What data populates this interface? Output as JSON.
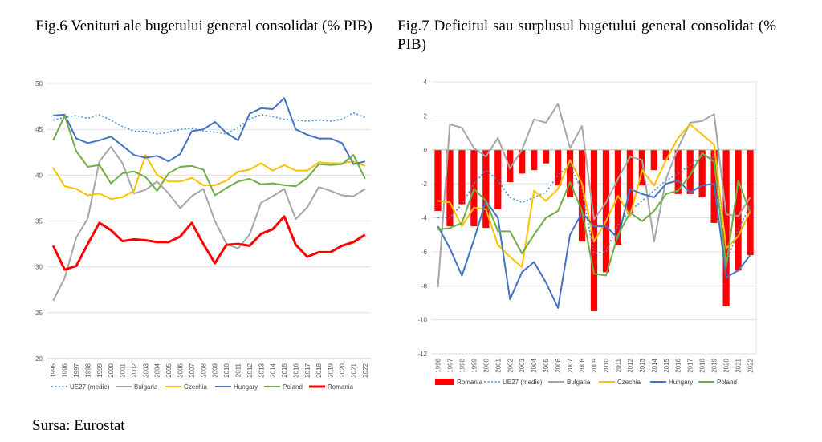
{
  "figures": {
    "fig6_title": "Fig.6 Venituri ale bugetului general consolidat (% PIB)",
    "fig7_title": "Fig.7 Deficitul sau surplusul bugetului general consolidat (% PIB)",
    "source": "Sursa: Eurostat"
  },
  "colors": {
    "UE27": "#4a8fd4",
    "Bulgaria": "#a6a6a6",
    "Czechia": "#ffc000",
    "Hungary": "#4472c4",
    "Poland": "#70ad47",
    "Romania": "#ff0000",
    "Romania_bar": "#ff0000",
    "grid": "#d9d9d9",
    "axis": "#bfbfbf"
  },
  "chart_data": [
    {
      "type": "line",
      "title": "Fig.6 Venituri ale bugetului general consolidat (% PIB)",
      "x": [
        "1995",
        "1996",
        "1997",
        "1998",
        "1999",
        "2000",
        "2001",
        "2002",
        "2003",
        "2004",
        "2005",
        "2006",
        "2007",
        "2008",
        "2009",
        "2010",
        "2011",
        "2012",
        "2013",
        "2014",
        "2015",
        "2016",
        "2017",
        "2018",
        "2019",
        "2020",
        "2021",
        "2022"
      ],
      "ylim": [
        20,
        50
      ],
      "yticks": [
        20,
        25,
        30,
        35,
        40,
        45,
        50
      ],
      "grid": true,
      "legend_position": "bottom",
      "series": [
        {
          "name": "UE27 (medie)",
          "style": "dotted",
          "values": [
            46.0,
            46.3,
            46.5,
            46.2,
            46.6,
            46.0,
            45.3,
            44.8,
            44.8,
            44.5,
            44.7,
            45.0,
            45.1,
            44.8,
            44.7,
            44.5,
            45.2,
            46.1,
            46.6,
            46.4,
            46.1,
            46.0,
            45.9,
            46.0,
            45.9,
            46.1,
            46.8,
            46.3
          ]
        },
        {
          "name": "Bulgaria",
          "style": "solid",
          "values": [
            26.3,
            28.8,
            33.2,
            35.3,
            41.5,
            43.1,
            41.3,
            38.0,
            38.4,
            39.3,
            38.0,
            36.4,
            37.7,
            38.5,
            35.0,
            32.5,
            32.0,
            33.5,
            37.0,
            37.7,
            38.5,
            35.2,
            36.5,
            38.7,
            38.3,
            37.8,
            37.7,
            38.5
          ]
        },
        {
          "name": "Czechia",
          "style": "solid",
          "values": [
            40.8,
            38.8,
            38.5,
            37.8,
            38.0,
            37.4,
            37.6,
            38.3,
            42.2,
            40.0,
            39.3,
            39.3,
            39.7,
            38.9,
            38.9,
            39.4,
            40.4,
            40.6,
            41.3,
            40.5,
            41.1,
            40.5,
            40.5,
            41.4,
            41.3,
            41.3,
            41.5,
            41.0
          ]
        },
        {
          "name": "Hungary",
          "style": "solid",
          "values": [
            46.5,
            46.6,
            44.0,
            43.5,
            43.8,
            44.2,
            43.2,
            42.2,
            41.9,
            42.1,
            41.5,
            42.3,
            44.8,
            45.0,
            45.8,
            44.6,
            43.8,
            46.7,
            47.3,
            47.2,
            48.4,
            45.0,
            44.4,
            44.0,
            44.0,
            43.5,
            41.2,
            41.5
          ]
        },
        {
          "name": "Poland",
          "style": "solid",
          "values": [
            43.8,
            46.5,
            42.6,
            40.9,
            41.1,
            39.1,
            40.2,
            40.4,
            39.8,
            38.3,
            40.2,
            40.9,
            41.0,
            40.6,
            37.8,
            38.6,
            39.3,
            39.6,
            39.0,
            39.1,
            38.9,
            38.8,
            39.7,
            41.2,
            41.1,
            41.2,
            42.2,
            39.6
          ]
        },
        {
          "name": "Romania",
          "style": "solid",
          "values": [
            32.3,
            29.7,
            30.1,
            32.5,
            34.8,
            34.0,
            32.8,
            33.0,
            32.9,
            32.7,
            32.7,
            33.3,
            34.8,
            32.5,
            30.4,
            32.4,
            32.5,
            32.3,
            33.6,
            34.1,
            35.5,
            32.4,
            31.1,
            31.6,
            31.6,
            32.3,
            32.7,
            33.5
          ]
        }
      ]
    },
    {
      "type": "bar",
      "title": "Fig.7 Deficitul sau surplusul bugetului general consolidat (% PIB)",
      "x": [
        "1996",
        "1997",
        "1998",
        "1999",
        "2000",
        "2001",
        "2002",
        "2003",
        "2004",
        "2005",
        "2006",
        "2007",
        "2008",
        "2009",
        "2010",
        "2011",
        "2012",
        "2013",
        "2014",
        "2015",
        "2016",
        "2017",
        "2018",
        "2019",
        "2020",
        "2021",
        "2022"
      ],
      "ylim": [
        -12,
        4
      ],
      "yticks": [
        -12,
        -10,
        -8,
        -6,
        -4,
        -2,
        0,
        2,
        4
      ],
      "grid": true,
      "legend_position": "bottom",
      "bar_series": {
        "name": "Romania",
        "values": [
          -3.6,
          -4.5,
          -3.2,
          -4.5,
          -4.6,
          -3.5,
          -1.9,
          -1.4,
          -1.2,
          -0.8,
          -2.1,
          -2.8,
          -5.4,
          -9.5,
          -7.2,
          -5.6,
          -3.7,
          -2.1,
          -1.2,
          -0.6,
          -2.6,
          -2.6,
          -2.8,
          -4.3,
          -9.2,
          -7.1,
          -6.2
        ]
      },
      "series": [
        {
          "name": "UE27 (medie)",
          "style": "dotted",
          "values": [
            -4.0,
            -4.0,
            -3.2,
            -2.0,
            -1.2,
            -1.8,
            -2.8,
            -3.1,
            -2.8,
            -2.5,
            -1.5,
            -0.9,
            -2.4,
            -6.1,
            -6.0,
            -4.4,
            -3.6,
            -3.0,
            -2.4,
            -1.8,
            -1.4,
            -0.9,
            -0.4,
            -0.5,
            -6.7,
            -4.7,
            -3.3
          ]
        },
        {
          "name": "Bulgaria",
          "style": "solid",
          "values": [
            -8.1,
            1.5,
            1.3,
            0.1,
            -0.4,
            0.7,
            -1.1,
            0.0,
            1.8,
            1.6,
            2.7,
            0.1,
            1.4,
            -4.1,
            -3.1,
            -1.7,
            -0.4,
            -0.6,
            -5.4,
            -1.7,
            0.1,
            1.6,
            1.7,
            2.1,
            -3.8,
            -3.9,
            -2.8
          ]
        },
        {
          "name": "Czechia",
          "style": "solid",
          "values": [
            -3.0,
            -3.1,
            -4.5,
            -3.4,
            -3.5,
            -5.6,
            -6.3,
            -6.9,
            -2.4,
            -3.0,
            -2.3,
            -0.6,
            -2.0,
            -5.4,
            -4.2,
            -2.7,
            -3.9,
            -1.2,
            -2.1,
            -0.6,
            0.7,
            1.5,
            0.9,
            0.3,
            -5.8,
            -5.1,
            -3.6
          ]
        },
        {
          "name": "Hungary",
          "style": "solid",
          "values": [
            -4.5,
            -5.8,
            -7.4,
            -5.3,
            -3.0,
            -4.0,
            -8.8,
            -7.2,
            -6.6,
            -7.8,
            -9.3,
            -5.0,
            -3.7,
            -4.5,
            -4.5,
            -5.2,
            -2.3,
            -2.6,
            -2.8,
            -2.0,
            -1.8,
            -2.5,
            -2.1,
            -2.0,
            -7.5,
            -7.1,
            -6.2
          ]
        },
        {
          "name": "Poland",
          "style": "solid",
          "values": [
            -4.7,
            -4.6,
            -4.3,
            -2.3,
            -3.0,
            -4.8,
            -4.8,
            -6.1,
            -5.0,
            -4.0,
            -3.6,
            -1.9,
            -3.6,
            -7.3,
            -7.4,
            -5.0,
            -3.7,
            -4.2,
            -3.6,
            -2.6,
            -2.4,
            -1.5,
            -0.2,
            -0.7,
            -6.9,
            -1.8,
            -3.7
          ]
        }
      ]
    }
  ]
}
